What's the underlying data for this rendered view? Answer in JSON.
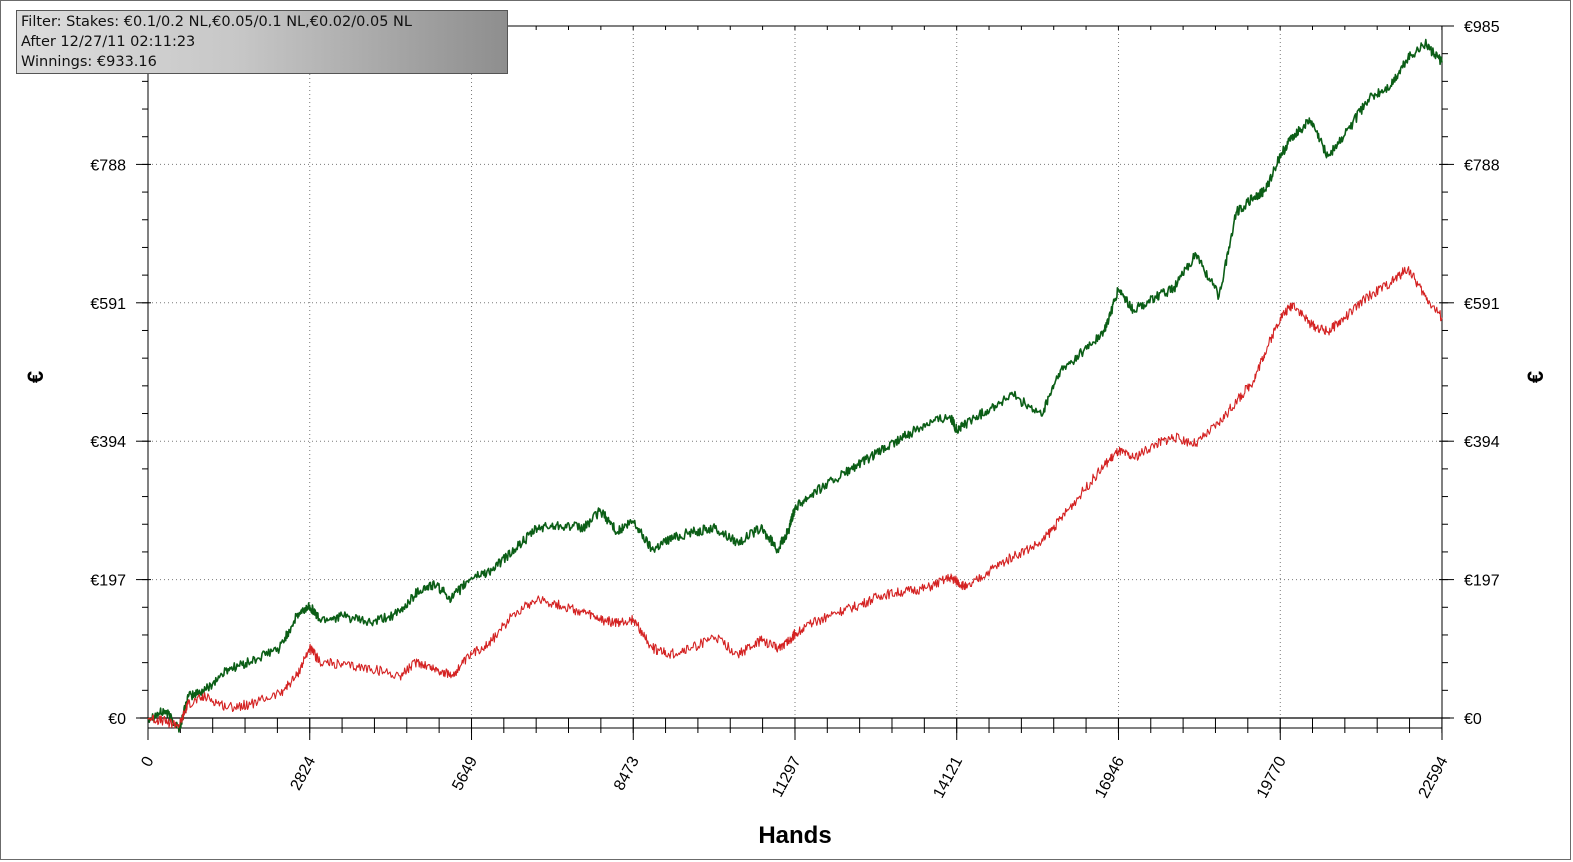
{
  "info_box": {
    "filter": "Filter: Stakes: €0.1/0.2 NL,€0.05/0.1 NL,€0.02/0.05 NL",
    "after": "After 12/27/11 02:11:23",
    "winnings": "Winnings: €933.16"
  },
  "chart_data": {
    "type": "line",
    "xlabel": "Hands",
    "ylabel": "€",
    "xlim": [
      0,
      22594
    ],
    "ylim": [
      0,
      985
    ],
    "x_ticks": [
      "0",
      "2824",
      "5649",
      "8473",
      "11297",
      "14121",
      "16946",
      "19770",
      "22594"
    ],
    "x_tick_values": [
      0,
      2824,
      5649,
      8473,
      11297,
      14121,
      16946,
      19770,
      22594
    ],
    "y_ticks": [
      "€0",
      "€197",
      "€394",
      "€591",
      "€788",
      "€985"
    ],
    "y_tick_values": [
      0,
      197,
      394,
      591,
      788,
      985
    ],
    "grid": true,
    "series": [
      {
        "color": "#0b5e16",
        "x": [
          0,
          300,
          550,
          700,
          1000,
          1400,
          1800,
          2300,
          2600,
          2824,
          3000,
          3400,
          3900,
          4400,
          4700,
          5000,
          5300,
          5649,
          6000,
          6400,
          6800,
          7200,
          7600,
          7900,
          8200,
          8473,
          8800,
          9100,
          9500,
          9900,
          10300,
          10700,
          11000,
          11200,
          11297,
          11600,
          12000,
          12400,
          12800,
          13200,
          13600,
          14000,
          14121,
          14300,
          14700,
          15100,
          15600,
          15900,
          16300,
          16700,
          16946,
          17200,
          17600,
          17900,
          18300,
          18700,
          19000,
          19300,
          19500,
          19770,
          20000,
          20300,
          20600,
          20900,
          21300,
          21700,
          22000,
          22300,
          22594
        ],
        "y": [
          0,
          10,
          -15,
          30,
          40,
          70,
          80,
          100,
          145,
          160,
          140,
          145,
          135,
          150,
          180,
          190,
          170,
          200,
          210,
          240,
          270,
          275,
          270,
          295,
          265,
          280,
          240,
          255,
          265,
          270,
          250,
          270,
          240,
          270,
          300,
          320,
          340,
          360,
          380,
          400,
          420,
          430,
          410,
          420,
          440,
          460,
          430,
          490,
          520,
          550,
          610,
          580,
          600,
          610,
          660,
          600,
          720,
          740,
          750,
          800,
          830,
          850,
          800,
          830,
          880,
          900,
          940,
          960,
          933
        ]
      },
      {
        "color": "#d42222",
        "x": [
          0,
          300,
          550,
          700,
          1000,
          1400,
          1800,
          2300,
          2600,
          2824,
          3000,
          3400,
          3900,
          4400,
          4700,
          5000,
          5300,
          5649,
          6000,
          6400,
          6800,
          7200,
          7600,
          7900,
          8200,
          8473,
          8800,
          9100,
          9500,
          9900,
          10300,
          10700,
          11000,
          11200,
          11297,
          11600,
          12000,
          12400,
          12800,
          13200,
          13600,
          14000,
          14121,
          14300,
          14700,
          15100,
          15600,
          15900,
          16300,
          16700,
          16946,
          17200,
          17600,
          17900,
          18300,
          18700,
          19000,
          19300,
          19500,
          19770,
          20000,
          20300,
          20600,
          20900,
          21300,
          21700,
          22000,
          22300,
          22594
        ],
        "y": [
          0,
          -5,
          -10,
          20,
          30,
          15,
          20,
          35,
          60,
          100,
          80,
          75,
          70,
          60,
          80,
          70,
          60,
          90,
          110,
          150,
          170,
          160,
          150,
          140,
          135,
          140,
          100,
          90,
          100,
          115,
          90,
          110,
          100,
          110,
          120,
          135,
          150,
          160,
          175,
          180,
          185,
          200,
          195,
          185,
          210,
          230,
          250,
          280,
          320,
          360,
          380,
          370,
          390,
          400,
          390,
          420,
          450,
          480,
          520,
          570,
          590,
          560,
          550,
          570,
          600,
          620,
          640,
          600,
          570
        ]
      }
    ]
  }
}
